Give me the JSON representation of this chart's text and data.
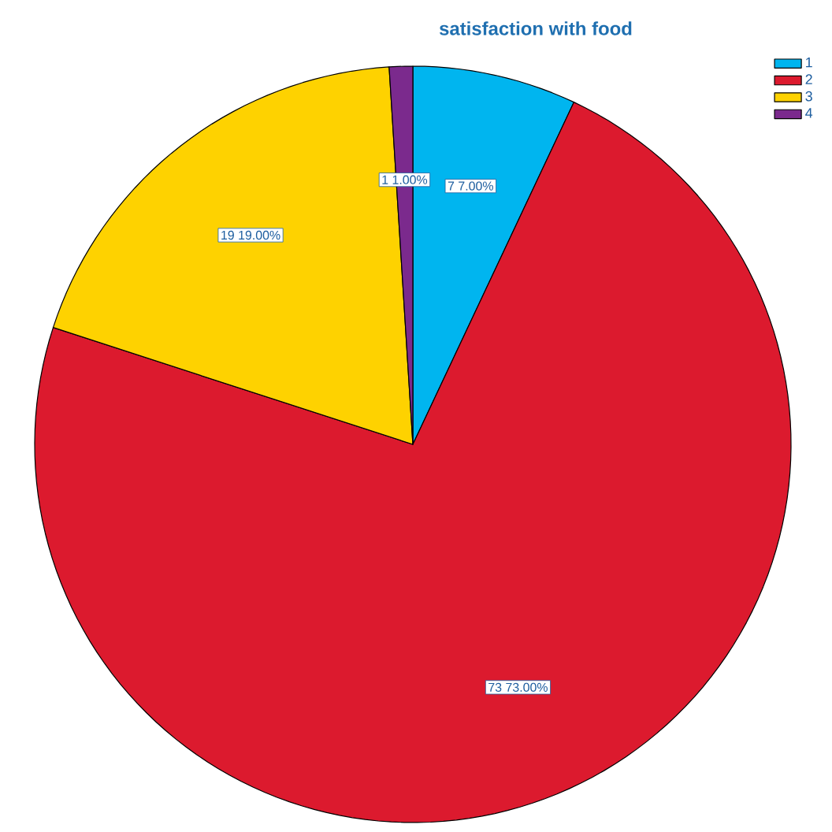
{
  "chart_data": {
    "type": "pie",
    "title": "satisfaction with food",
    "categories": [
      "1",
      "2",
      "3",
      "4"
    ],
    "values": [
      7,
      73,
      19,
      1
    ],
    "colors": [
      "#00b5ef",
      "#dc1a2e",
      "#fed200",
      "#7b2a8d"
    ],
    "value_labels": [
      "7 7.00%",
      "73 73.00%",
      "19 19.00%",
      "1 1.00%"
    ],
    "legend": "top right"
  }
}
